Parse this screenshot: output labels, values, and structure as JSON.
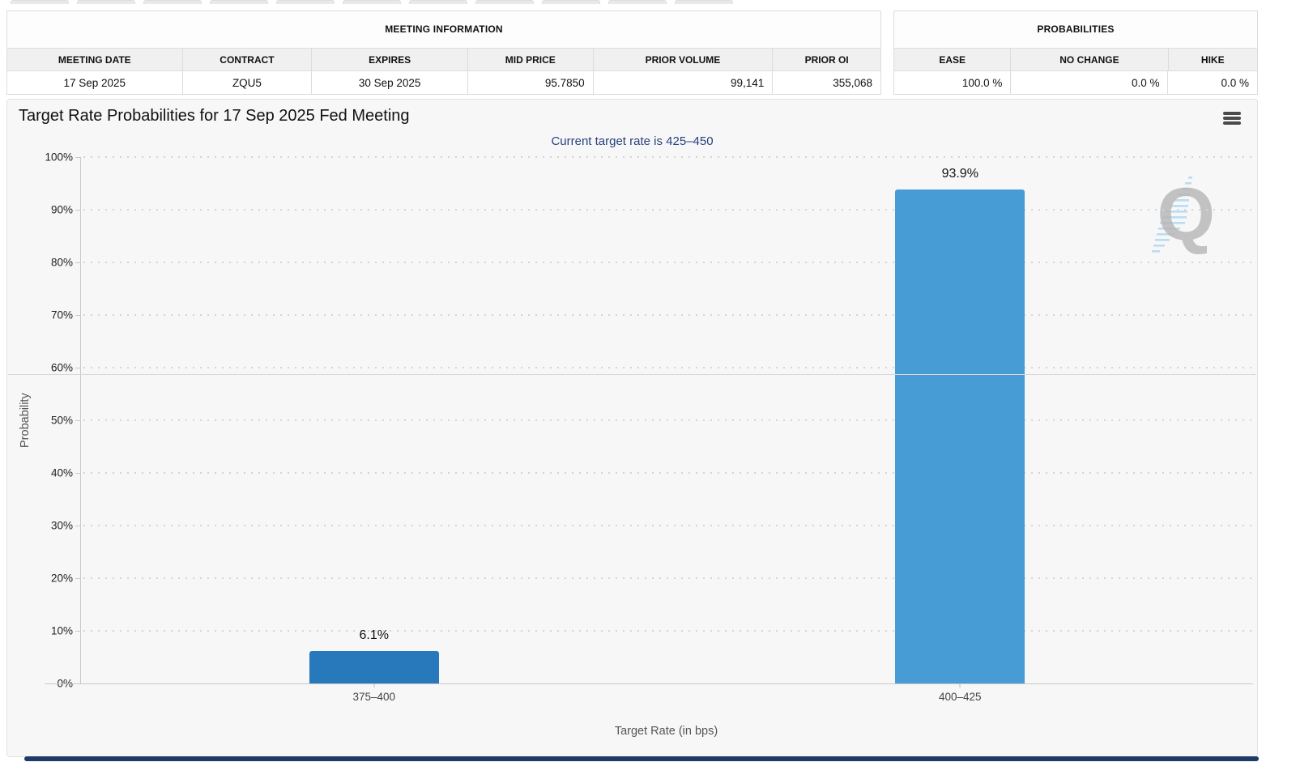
{
  "tab_strip": {
    "count": 11
  },
  "meeting_info": {
    "title": "MEETING INFORMATION",
    "columns": [
      "MEETING DATE",
      "CONTRACT",
      "EXPIRES",
      "MID PRICE",
      "PRIOR VOLUME",
      "PRIOR OI"
    ],
    "row": [
      "17 Sep 2025",
      "ZQU5",
      "30 Sep 2025",
      "95.7850",
      "99,141",
      "355,068"
    ]
  },
  "probabilities": {
    "title": "PROBABILITIES",
    "columns": [
      "EASE",
      "NO CHANGE",
      "HIKE"
    ],
    "row": [
      "100.0 %",
      "0.0 %",
      "0.0 %"
    ]
  },
  "chart": {
    "title": "Target Rate Probabilities for 17 Sep 2025 Fed Meeting",
    "subtitle": "Current target rate is 425–450",
    "menu_icon": "hamburger-menu-icon",
    "watermark_letter": "Q"
  },
  "chart_data": {
    "type": "bar",
    "categories": [
      "375–400",
      "400–425"
    ],
    "values": [
      6.1,
      93.9
    ],
    "bar_labels": [
      "6.1%",
      "93.9%"
    ],
    "bar_colors": [
      "#2878BC",
      "#489CD5"
    ],
    "title": "Target Rate Probabilities for 17 Sep 2025 Fed Meeting",
    "subtitle": "Current target rate is 425–450",
    "xlabel": "Target Rate (in bps)",
    "ylabel": "Probability",
    "ylim": [
      0,
      100
    ],
    "ytick_step": 10,
    "ytick_suffix": "%",
    "grid": "dotted-horizontal",
    "legend": "none",
    "reference_line_value": 58.8
  }
}
